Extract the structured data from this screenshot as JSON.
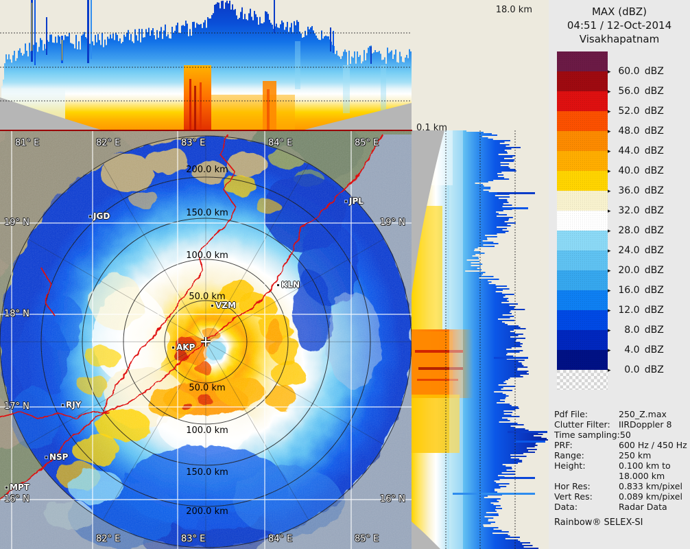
{
  "corner_axis": {
    "max_height": "18.0 km",
    "min_height": "0.1 km"
  },
  "legend": {
    "title": "MAX (dBZ)",
    "datetime": "04:51 / 12-Oct-2014",
    "station": "Visakhapatnam",
    "scale": [
      {
        "value": "60.0",
        "unit": "dBZ",
        "color": "#6b1a45"
      },
      {
        "value": "56.0",
        "unit": "dBZ",
        "color": "#9e0a10"
      },
      {
        "value": "52.0",
        "unit": "dBZ",
        "color": "#de1010"
      },
      {
        "value": "48.0",
        "unit": "dBZ",
        "color": "#fb5000"
      },
      {
        "value": "44.0",
        "unit": "dBZ",
        "color": "#fc8a00"
      },
      {
        "value": "40.0",
        "unit": "dBZ",
        "color": "#ffad00"
      },
      {
        "value": "36.0",
        "unit": "dBZ",
        "color": "#ffd400"
      },
      {
        "value": "32.0",
        "unit": "dBZ",
        "color": "#f8f2ce"
      },
      {
        "value": "28.0",
        "unit": "dBZ",
        "color": "#ffffff"
      },
      {
        "value": "24.0",
        "unit": "dBZ",
        "color": "#8bd9f6"
      },
      {
        "value": "20.0",
        "unit": "dBZ",
        "color": "#5fc2f2"
      },
      {
        "value": "16.0",
        "unit": "dBZ",
        "color": "#36a7ee"
      },
      {
        "value": "12.0",
        "unit": "dBZ",
        "color": "#0e7ff2"
      },
      {
        "value": "8.0",
        "unit": "dBZ",
        "color": "#0049e4"
      },
      {
        "value": "4.0",
        "unit": "dBZ",
        "color": "#0027be"
      },
      {
        "value": "0.0",
        "unit": "dBZ",
        "color": "#001185"
      }
    ]
  },
  "metadata": {
    "rows": [
      {
        "label": "Pdf File:",
        "value": "250_Z.max"
      },
      {
        "label": "Clutter Filter:",
        "value": "IIRDoppler 8"
      },
      {
        "label": "Time sampling:50",
        "value": ""
      },
      {
        "label": "PRF:",
        "value": "600 Hz / 450 Hz"
      },
      {
        "label": "Range:",
        "value": "250 km"
      },
      {
        "label": "Height:",
        "value": "0.100 km to"
      },
      {
        "label": "",
        "value": "18.000 km"
      },
      {
        "label": "Hor Res:",
        "value": "0.833 km/pixel"
      },
      {
        "label": "Vert Res:",
        "value": "0.089 km/pixel"
      },
      {
        "label": "Data:",
        "value": "Radar Data"
      }
    ],
    "brand": "Rainbow® SELEX-SI"
  },
  "map": {
    "lon_labels_top": [
      "81° E",
      "82° E",
      "83° E",
      "84° E",
      "85° E"
    ],
    "lon_labels_bottom": [
      "82° E",
      "83° E",
      "84° E",
      "85° E"
    ],
    "lat_labels_left": [
      "19° N",
      "18° N",
      "17° N",
      "16° N"
    ],
    "lat_labels_right": [
      "19° N",
      "16° N"
    ],
    "range_ring_labels": [
      "50.0 km",
      "100.0 km",
      "150.0 km",
      "200.0 km"
    ],
    "cities": [
      "JGD",
      "JPL",
      "KLN",
      "VZM",
      "AKP",
      "RJY",
      "NSP",
      "MPT"
    ],
    "center_marker": "+"
  },
  "colors": {
    "panel_bg": "#edeade",
    "legend_bg": "#e9e9e9",
    "no_data_gray": "#b6b6b6",
    "sea": "#a9c3e6",
    "land_tan": "#b7a77e",
    "land_olive": "#a9a078",
    "land_green": "#7e9760",
    "boundary_red": "#de0000",
    "separator_red": "#990000"
  }
}
